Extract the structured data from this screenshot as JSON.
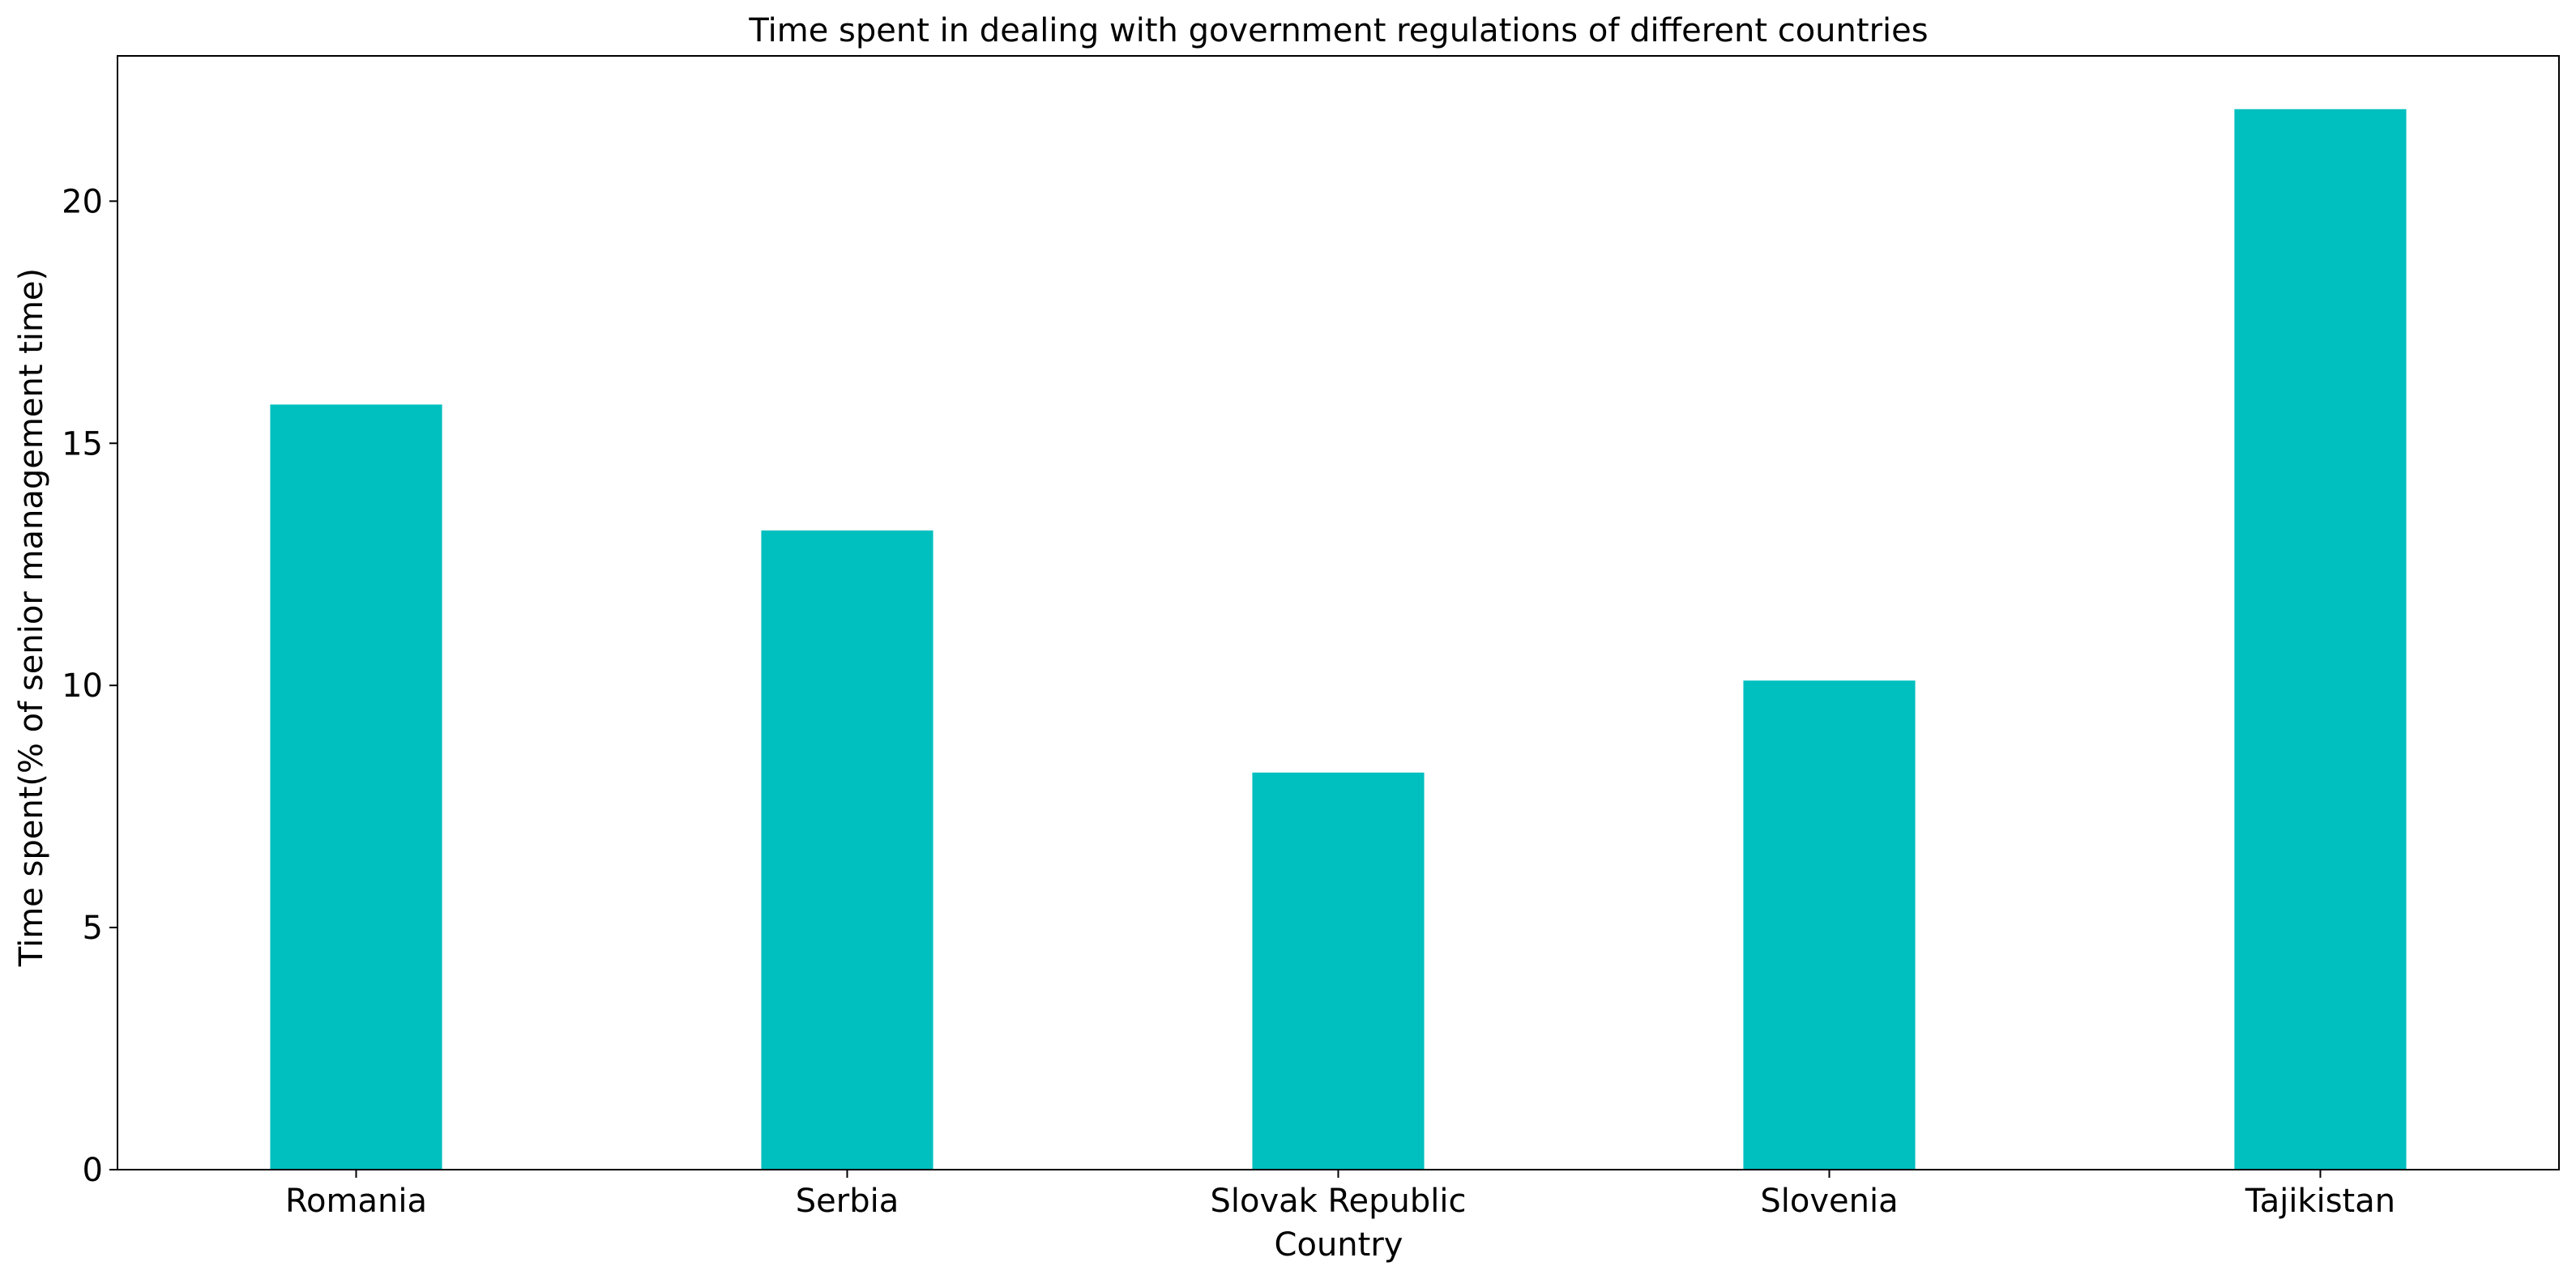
{
  "chart_data": {
    "type": "bar",
    "title": "Time spent in dealing with government regulations of different countries",
    "xlabel": "Country",
    "ylabel": "Time spent(% of senior management time)",
    "categories": [
      "Romania",
      "Serbia",
      "Slovak Republic",
      "Slovenia",
      "Tajikistan"
    ],
    "values": [
      15.8,
      13.2,
      8.2,
      10.1,
      21.9
    ],
    "ylim": [
      0,
      23
    ],
    "yticks": [
      0,
      5,
      10,
      15,
      20
    ],
    "grid": false,
    "legend": "none",
    "bar_color": "#00bfbf"
  }
}
